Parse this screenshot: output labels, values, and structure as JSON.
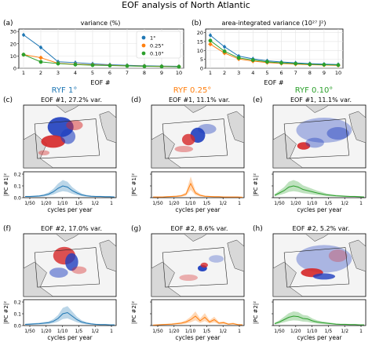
{
  "figure": {
    "title": "EOF analysis of North Atlantic",
    "colors": {
      "ryf1": "#1f77b4",
      "ryf025": "#ff7f0e",
      "ryf010": "#2ca02c",
      "pos": "#d62728",
      "neg": "#1f3fbf"
    }
  },
  "chart_data": [
    {
      "id": "a",
      "panel_label": "(a)",
      "type": "line",
      "title": "variance (%)",
      "xlabel": "EOF #",
      "x": [
        1,
        2,
        3,
        4,
        5,
        6,
        7,
        8,
        9,
        10
      ],
      "xlim": [
        1,
        10
      ],
      "ylim": [
        0,
        32
      ],
      "yticks": [
        0,
        10,
        20,
        30
      ],
      "legend": {
        "placement": "right",
        "entries": [
          "1°",
          "0.25°",
          "0.10°"
        ]
      },
      "series": [
        {
          "name": "1°",
          "color": "#1f77b4",
          "values": [
            27.2,
            17.0,
            5.3,
            4.6,
            3.6,
            2.9,
            2.4,
            2.0,
            1.8,
            1.6
          ]
        },
        {
          "name": "0.25°",
          "color": "#ff7f0e",
          "values": [
            11.1,
            8.6,
            4.0,
            3.3,
            2.8,
            2.4,
            2.0,
            1.7,
            1.5,
            1.3
          ]
        },
        {
          "name": "0.10°",
          "color": "#2ca02c",
          "values": [
            11.1,
            5.2,
            3.8,
            3.0,
            2.5,
            2.2,
            1.9,
            1.6,
            1.4,
            1.2
          ]
        }
      ]
    },
    {
      "id": "b",
      "panel_label": "(b)",
      "type": "line",
      "title": "area-integrated variance (10²⁷ J²)",
      "xlabel": "EOF #",
      "x": [
        1,
        2,
        3,
        4,
        5,
        6,
        7,
        8,
        9,
        10
      ],
      "xlim": [
        1,
        10
      ],
      "ylim": [
        0,
        22
      ],
      "yticks": [
        0,
        5,
        10,
        15,
        20
      ],
      "series": [
        {
          "name": "1°",
          "color": "#1f77b4",
          "values": [
            18.5,
            12.0,
            6.8,
            5.3,
            4.2,
            3.5,
            3.0,
            2.6,
            2.3,
            2.1
          ]
        },
        {
          "name": "0.25°",
          "color": "#ff7f0e",
          "values": [
            13.5,
            8.5,
            5.2,
            4.0,
            3.2,
            2.7,
            2.3,
            2.0,
            1.8,
            1.6
          ]
        },
        {
          "name": "0.10°",
          "color": "#2ca02c",
          "values": [
            15.5,
            9.5,
            5.8,
            4.6,
            3.6,
            3.0,
            2.6,
            2.2,
            2.0,
            1.8
          ]
        }
      ]
    }
  ],
  "columns": [
    {
      "label": "RYF 1°",
      "color": "#1f77b4"
    },
    {
      "label": "RYF 0.25°",
      "color": "#ff7f0e"
    },
    {
      "label": "RYF 0.10°",
      "color": "#2ca02c"
    }
  ],
  "maps": [
    {
      "panel_label": "(c)",
      "title": "EOF #1, 27.2% var."
    },
    {
      "panel_label": "(d)",
      "title": "EOF #1, 11.1% var."
    },
    {
      "panel_label": "(e)",
      "title": "EOF #1, 11.1% var."
    },
    {
      "panel_label": "(f)",
      "title": "EOF #2, 17.0% var."
    },
    {
      "panel_label": "(g)",
      "title": "EOF #2, 8.6% var."
    },
    {
      "panel_label": "(h)",
      "title": "EOF #2, 5.2% var."
    }
  ],
  "spectra": {
    "xlabel": "cycles per year",
    "xticks": [
      "1/50",
      "1/20",
      "1/10",
      "1/5",
      "1/2",
      "1"
    ],
    "yticks": [
      "0.0",
      "0.1",
      "0.2"
    ],
    "ylabel_row1": "|PC #1|²",
    "ylabel_row2": "|PC #2|²"
  }
}
